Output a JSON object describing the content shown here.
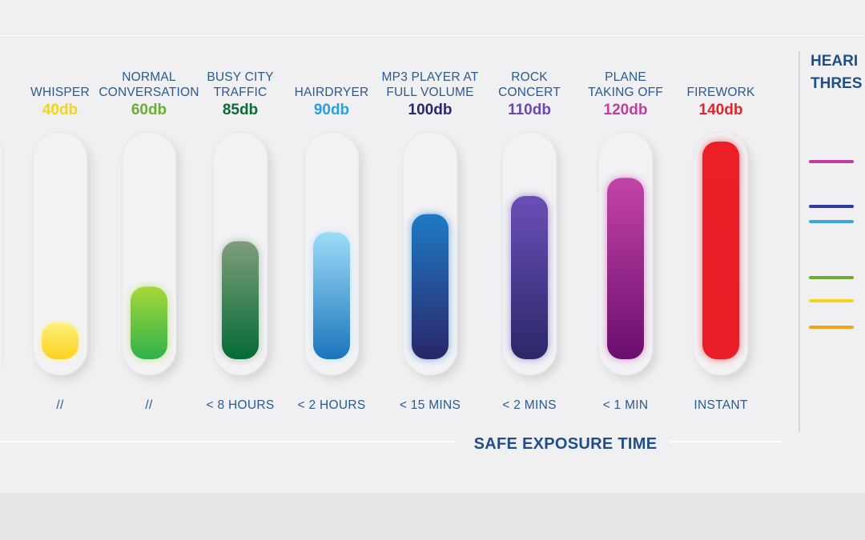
{
  "chart_data": {
    "type": "bar",
    "categories": [
      [
        "WHISPER"
      ],
      [
        "NORMAL",
        "CONVERSATION"
      ],
      [
        "BUSY CITY",
        "TRAFFIC"
      ],
      [
        "HAIRDRYER"
      ],
      [
        "MP3 PLAYER AT",
        "FULL VOLUME"
      ],
      [
        "ROCK",
        "CONCERT"
      ],
      [
        "PLANE",
        "TAKING OFF"
      ],
      [
        "FIREWORK"
      ]
    ],
    "values": [
      40,
      60,
      85,
      90,
      100,
      110,
      120,
      140
    ],
    "value_labels": [
      "40db",
      "60db",
      "85db",
      "90db",
      "100db",
      "110db",
      "120db",
      "140db"
    ],
    "exposure_labels": [
      "//",
      "//",
      "< 8 HOURS",
      "< 2 HOURS",
      "< 15 MINS",
      "< 2 MINS",
      "< 1 MIN",
      "INSTANT"
    ],
    "xlabel": "SAFE EXPOSURE TIME",
    "ylim": [
      20,
      140
    ],
    "colors": {
      "label": [
        "#f2d41a",
        "#6cae2e",
        "#0b6b35",
        "#2aa0dc",
        "#27286e",
        "#6a48b3",
        "#c23da0",
        "#ec2027"
      ],
      "bar_top": [
        "#fff07a",
        "#a6d83a",
        "#7f9d7c",
        "#9ddcf8",
        "#1e7bc6",
        "#6a4fb7",
        "#c344a8",
        "#ec1f26"
      ],
      "bar_bottom": [
        "#fbd21f",
        "#2fb24b",
        "#036b34",
        "#1b75bc",
        "#2a2569",
        "#2b2768",
        "#6a0e6d",
        "#e81d25"
      ]
    }
  },
  "legend": {
    "title_lines": [
      "HEARI",
      "THRES"
    ],
    "colors": [
      "#c23da0",
      "#2e3d9a",
      "#3aa8e0",
      "#6cae2e",
      "#f4d41a",
      "#f5a21b"
    ]
  }
}
